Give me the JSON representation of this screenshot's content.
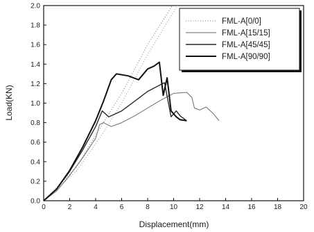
{
  "chart_data": {
    "type": "line",
    "xlabel": "Displacement(mm)",
    "ylabel": "Load(KN)",
    "xlim": [
      0,
      20
    ],
    "ylim": [
      0,
      2.0
    ],
    "xticks": [
      0,
      2,
      4,
      6,
      8,
      10,
      12,
      14,
      16,
      18,
      20
    ],
    "yticks": [
      0.0,
      0.2,
      0.4,
      0.6,
      0.8,
      1.0,
      1.2,
      1.4,
      1.6,
      1.8,
      2.0
    ],
    "xtick_labels": [
      "0",
      "2",
      "4",
      "6",
      "8",
      "10",
      "12",
      "14",
      "16",
      "18",
      "20"
    ],
    "ytick_labels": [
      "0.0",
      "0.2",
      "0.4",
      "0.6",
      "0.8",
      "1.0",
      "1.2",
      "1.4",
      "1.6",
      "1.8",
      "2.0"
    ],
    "grid": false,
    "legend_position": "top-right",
    "series": [
      {
        "name": "FML-A[0/0]",
        "style": "dotted",
        "color": "#7a7a7a",
        "points": [
          [
            0,
            0
          ],
          [
            2.5,
            0.34
          ],
          [
            4.5,
            0.78
          ],
          [
            6.0,
            1.1
          ],
          [
            8.0,
            1.6
          ],
          [
            9.9,
            2.0
          ]
        ]
      },
      {
        "name": "FML-A[15/15]",
        "style": "solid-thin",
        "color": "#6a6a6a",
        "points": [
          [
            0,
            0
          ],
          [
            1,
            0.1
          ],
          [
            2,
            0.26
          ],
          [
            3,
            0.44
          ],
          [
            4,
            0.64
          ],
          [
            4.3,
            0.78
          ],
          [
            4.6,
            0.8
          ],
          [
            5.2,
            0.76
          ],
          [
            6,
            0.8
          ],
          [
            7,
            0.87
          ],
          [
            8,
            0.95
          ],
          [
            9,
            1.03
          ],
          [
            10,
            1.1
          ],
          [
            11,
            1.11
          ],
          [
            11.4,
            1.06
          ],
          [
            11.6,
            0.95
          ],
          [
            12,
            0.93
          ],
          [
            12.5,
            0.96
          ],
          [
            13,
            0.9
          ],
          [
            13.5,
            0.82
          ]
        ]
      },
      {
        "name": "FML-A[45/45]",
        "style": "solid",
        "color": "#2a2a2a",
        "points": [
          [
            0,
            0
          ],
          [
            1,
            0.12
          ],
          [
            2,
            0.3
          ],
          [
            3,
            0.52
          ],
          [
            4,
            0.76
          ],
          [
            4.5,
            0.92
          ],
          [
            5.0,
            0.86
          ],
          [
            6,
            0.92
          ],
          [
            7,
            1.02
          ],
          [
            8,
            1.12
          ],
          [
            9,
            1.19
          ],
          [
            9.3,
            1.21
          ],
          [
            9.6,
            1.0
          ],
          [
            9.8,
            0.86
          ],
          [
            10.2,
            0.92
          ],
          [
            10.5,
            0.87
          ],
          [
            11,
            0.82
          ]
        ]
      },
      {
        "name": "FML-A[90/90]",
        "style": "solid-thick",
        "color": "#111111",
        "points": [
          [
            0,
            0
          ],
          [
            1,
            0.12
          ],
          [
            2,
            0.31
          ],
          [
            3,
            0.55
          ],
          [
            4,
            0.82
          ],
          [
            4.6,
            1.02
          ],
          [
            5.2,
            1.24
          ],
          [
            5.6,
            1.3
          ],
          [
            6.5,
            1.28
          ],
          [
            7.3,
            1.24
          ],
          [
            8,
            1.35
          ],
          [
            8.5,
            1.38
          ],
          [
            8.9,
            1.42
          ],
          [
            9.2,
            1.08
          ],
          [
            9.5,
            1.26
          ],
          [
            9.8,
            0.92
          ],
          [
            10.2,
            0.86
          ],
          [
            10.5,
            0.83
          ],
          [
            11,
            0.82
          ]
        ]
      }
    ],
    "extra_lines": [
      {
        "style": "dotted",
        "color": "#9a9a9a",
        "points": [
          [
            0,
            0
          ],
          [
            2.5,
            0.3
          ],
          [
            4.5,
            0.68
          ],
          [
            6.0,
            1.0
          ],
          [
            8.0,
            1.5
          ],
          [
            10.3,
            2.0
          ]
        ]
      }
    ]
  }
}
